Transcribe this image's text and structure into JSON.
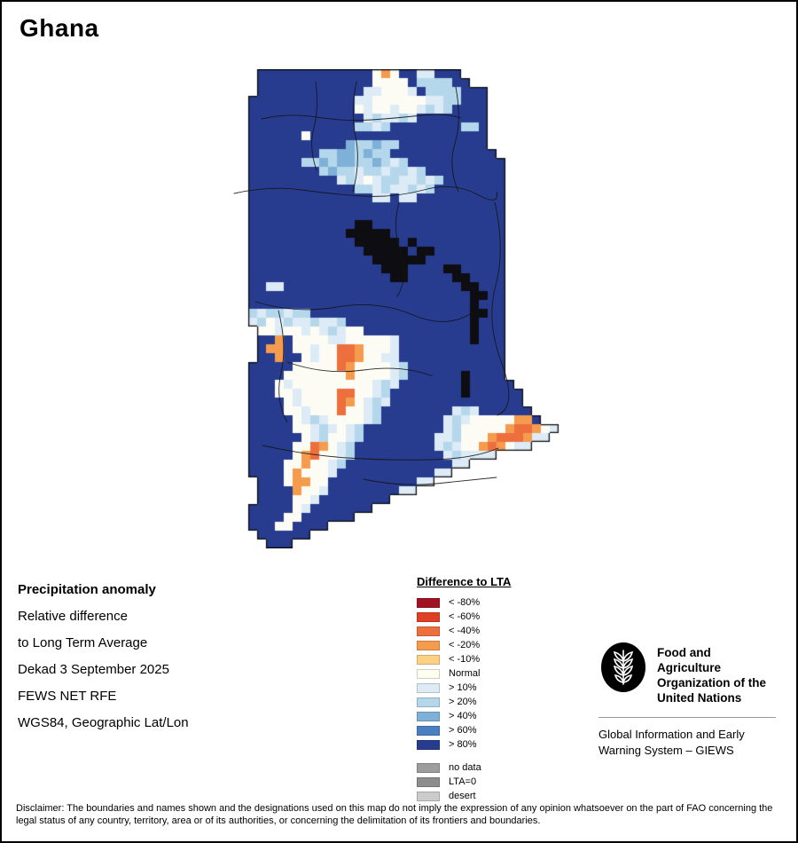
{
  "title": "Ghana",
  "info_block": {
    "heading": "Precipitation anomaly",
    "lines": [
      "Relative difference",
      "to Long Term Average",
      "Dekad 3 September 2025",
      "FEWS NET RFE",
      "WGS84, Geographic Lat/Lon"
    ]
  },
  "legend": {
    "title": "Difference to LTA",
    "items": [
      {
        "label": "< -80%",
        "color": "#a21220"
      },
      {
        "label": "< -60%",
        "color": "#df3f23"
      },
      {
        "label": "< -40%",
        "color": "#ee6f3e"
      },
      {
        "label": "< -20%",
        "color": "#f59b4e"
      },
      {
        "label": "< -10%",
        "color": "#fcd183"
      },
      {
        "label": "Normal",
        "color": "#fdfdf0"
      },
      {
        "label": "> 10%",
        "color": "#dcebf5"
      },
      {
        "label": "> 20%",
        "color": "#b5d7eb"
      },
      {
        "label": "> 40%",
        "color": "#7fb0d8"
      },
      {
        "label": "> 60%",
        "color": "#4a7fc1"
      },
      {
        "label": "> 80%",
        "color": "#283c8f"
      }
    ],
    "extra_items": [
      {
        "label": "no data",
        "color": "#9d9d9d"
      },
      {
        "label": "LTA=0",
        "color": "#8d8d8d"
      },
      {
        "label": "desert",
        "color": "#cbcbcb"
      }
    ]
  },
  "fao": {
    "name_lines": [
      "Food and Agriculture",
      "Organization of the",
      "United Nations"
    ],
    "giews_lines": [
      "Global Information and Early",
      "Warning System – GIEWS"
    ]
  },
  "disclaimer": "Disclaimer: The boundaries and names shown and the designations used on this map do not imply the expression of any opinion whatsoever on the part of FAO concerning the legal status of any country, territory, area or of its authorities, or concerning the delimitation of its frontiers and boundaries.",
  "map": {
    "cell_size": 10,
    "palette": {
      "B": "#283c8f",
      "m": "#7fb0d8",
      "l": "#b5d7eb",
      "p": "#dcebf5",
      "w": "#fcfcf4",
      "o": "#f59b4e",
      "O": "#ee6f3e",
      "k": "#0d0d12"
    },
    "rows": [
      "...BBBBBBBBBBBBBwowBBppBBB............",
      "...BBBBBBBBBBBBBwwwwBllllBB...........",
      "...BBBBBBBBBBBBppwwwpBllllBBB.........",
      "..BBBBBBBBBBBBppwwwwwwppllBBB.........",
      "..BBBBBBBBBBBBwpwwpwwplplBBBB.........",
      "..BBBBBBBBBBBBBplpplpBBBBBBBB.........",
      "..BBBBBBBBBBBBllplBBBBBBBBllB.........",
      "..BBBBBBwBBBBBBBBBBBBBBBBBBBB.........",
      "..BBBBBBBBBBBmllmllBBBBBBBBBB.........",
      "..BBBBBBBBllmmlmllBBBBBBBBBBBB........",
      "..BBBBBBllmlmmllmlplBBBBBBBBBBB.......",
      "..BBBBBBBBlmllpllpllplBBBBBBBBB.......",
      "..BBBBBBBBBBplpwpllpplplBBBBBBB.......",
      "..BBBBBBBBBBBBllplpplplBBBBBBBB.......",
      "..BBBBBBBBBBBBBBppBppBBBBBBBBBB.......",
      "..BBBBBBBBBBBBBBBBBBBBBBBBBBBBB.......",
      "..BBBBBBBBBBBBBBBBBBBBBBBBBBBBB.......",
      "..BBBBBBBBBBBBkkBBBBBBBBBBBBBBB.......",
      "..BBBBBBBBBBBkkkkkBBBBBBBBBBBBB.......",
      "..BBBBBBBBBBBBkkkkkBkBBBBBBBBBB.......",
      "..BBBBBBBBBBBBBkkkkkBkkBBBBBBBB.......",
      "..BBBBBBBBBBBBBBkkkkkkBBBBBBBBB.......",
      "..BBBBBBBBBBBBBBBkkkBBBBkkBBBBB.......",
      "..BBBBBBBBBBBBBBBBkkBBBBBkkBBBB.......",
      "..BBppBBBBBBBBBBBBBBBBBBBBkkBBB.......",
      "..BBBBBBBBBBBBBBBBBBBBBBBBBkkBB.......",
      "..BBBBBBBBBBBBBBBBBBBBBBBBBkBBB.......",
      "..lpllpllBBBBBBBBBBBBBBBBBBkkBB.......",
      "..plwplpplpplBBBBBBBBBBBBBBkBBB.......",
      "...wwpwwpwplpwwBBBBBBBBBBBBkBBB.......",
      "...BBoBwwwwppwwwwwpBBBBBBBBkBBB.......",
      "...BooBwwpwwOOowwwpBBBBBBBBBBBB.......",
      "...BBoBBwpwwOOowwppBBBBBBBBBBBB.......",
      "..BBBBBwwwwwOowwwwplBBBBBBBBBBB.......",
      "..BBBBwwwwwwwowwwwplBBBBBBkBBBB.......",
      "..BBBwpwwwwwwwwwplpBBBBBBBkBBBBB......",
      "..BBBwwpwwwwOOwwplBBBBBBBBkBBBBBB.....",
      "..BBBBwpwwwwOowplpBBBBBBBBBBBBBBB.....",
      "..BBBBwwpwwwOwwplBBBBBBBBplpBBBBBB....",
      "..BBBBBwplpwwwwplBBBBBBBplpwwwwwooB...",
      "..BBBBBwwplpwplBBBBBBBBBplwwwwwoOOowp.",
      "..BBBBBBwplwwplBBBBBBBBpplwwwoOOOopp..",
      "..BBBBBwwOowplBBBBBBBBBplpwwoOowpp....",
      "..BBBBBwoOwwplBBBBBBBBBBplpppp........",
      "..BBBBwwowwplBBBBBBBBBBBBpp...........",
      "..BBBBwowwwpBBBBBBBBBBBpp.............",
      "...BBBwoowwBBBBBBBBBBpp...............",
      "...BBBBowwpBBBBBBBBpp.................",
      "...BBBBwwpBBBBBBBB....................",
      "..BBBBBwpBBBBBBB......................",
      "..BBBBwwBBBBBB........................",
      "..BBBwwBBBB...........................",
      "...BBBBBB.............................",
      "....BBB..............................."
    ]
  }
}
